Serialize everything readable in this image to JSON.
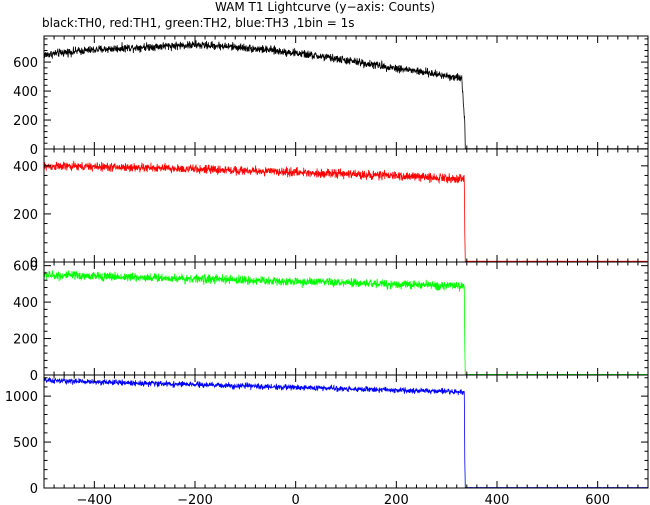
{
  "chart_data": {
    "type": "line",
    "title": "WAM T1 Lightcurve (y−axis: Counts)",
    "subtitle": "black:TH0, red:TH1, green:TH2, blue:TH3 ,1bin = 1s",
    "xlim": [
      -500,
      700
    ],
    "x_ticks": [
      -400,
      -200,
      0,
      200,
      400,
      600
    ],
    "x_tick_labels": [
      "−400",
      "−200",
      "0",
      "200",
      "400",
      "600"
    ],
    "bin_seconds": 1,
    "cutoff_time": 336,
    "panels": [
      {
        "name": "TH0",
        "color": "#000000",
        "ylim": [
          0,
          780
        ],
        "y_ticks": [
          0,
          200,
          400,
          600
        ],
        "x": [
          -500,
          -450,
          -400,
          -350,
          -300,
          -250,
          -200,
          -150,
          -100,
          -50,
          0,
          50,
          100,
          150,
          200,
          250,
          300,
          330,
          336,
          337,
          700
        ],
        "values": [
          650,
          670,
          685,
          695,
          705,
          712,
          718,
          712,
          698,
          682,
          662,
          638,
          612,
          585,
          558,
          532,
          505,
          488,
          180,
          2,
          2
        ],
        "noise": 28
      },
      {
        "name": "TH1",
        "color": "#ff0000",
        "ylim": [
          0,
          470
        ],
        "y_ticks": [
          0,
          200,
          400
        ],
        "x": [
          -500,
          -400,
          -300,
          -200,
          -100,
          0,
          100,
          200,
          300,
          335,
          336,
          337,
          700
        ],
        "values": [
          398,
          396,
          392,
          386,
          380,
          373,
          366,
          358,
          350,
          346,
          120,
          3,
          3
        ],
        "noise": 18
      },
      {
        "name": "TH2",
        "color": "#00ff00",
        "ylim": [
          0,
          620
        ],
        "y_ticks": [
          0,
          200,
          400,
          600
        ],
        "x": [
          -500,
          -400,
          -300,
          -200,
          -100,
          0,
          100,
          200,
          300,
          335,
          336,
          337,
          700
        ],
        "values": [
          548,
          542,
          535,
          528,
          520,
          512,
          505,
          498,
          490,
          486,
          150,
          3,
          3
        ],
        "noise": 24
      },
      {
        "name": "TH3",
        "color": "#0000ff",
        "ylim": [
          0,
          1230
        ],
        "y_ticks": [
          0,
          500,
          1000
        ],
        "y_tick_labels": [
          "0",
          "500",
          "1000"
        ],
        "x": [
          -500,
          -400,
          -300,
          -200,
          -100,
          0,
          100,
          200,
          300,
          335,
          336,
          337,
          700
        ],
        "values": [
          1170,
          1155,
          1140,
          1125,
          1110,
          1095,
          1080,
          1065,
          1050,
          1045,
          300,
          5,
          5
        ],
        "noise": 30
      }
    ]
  }
}
